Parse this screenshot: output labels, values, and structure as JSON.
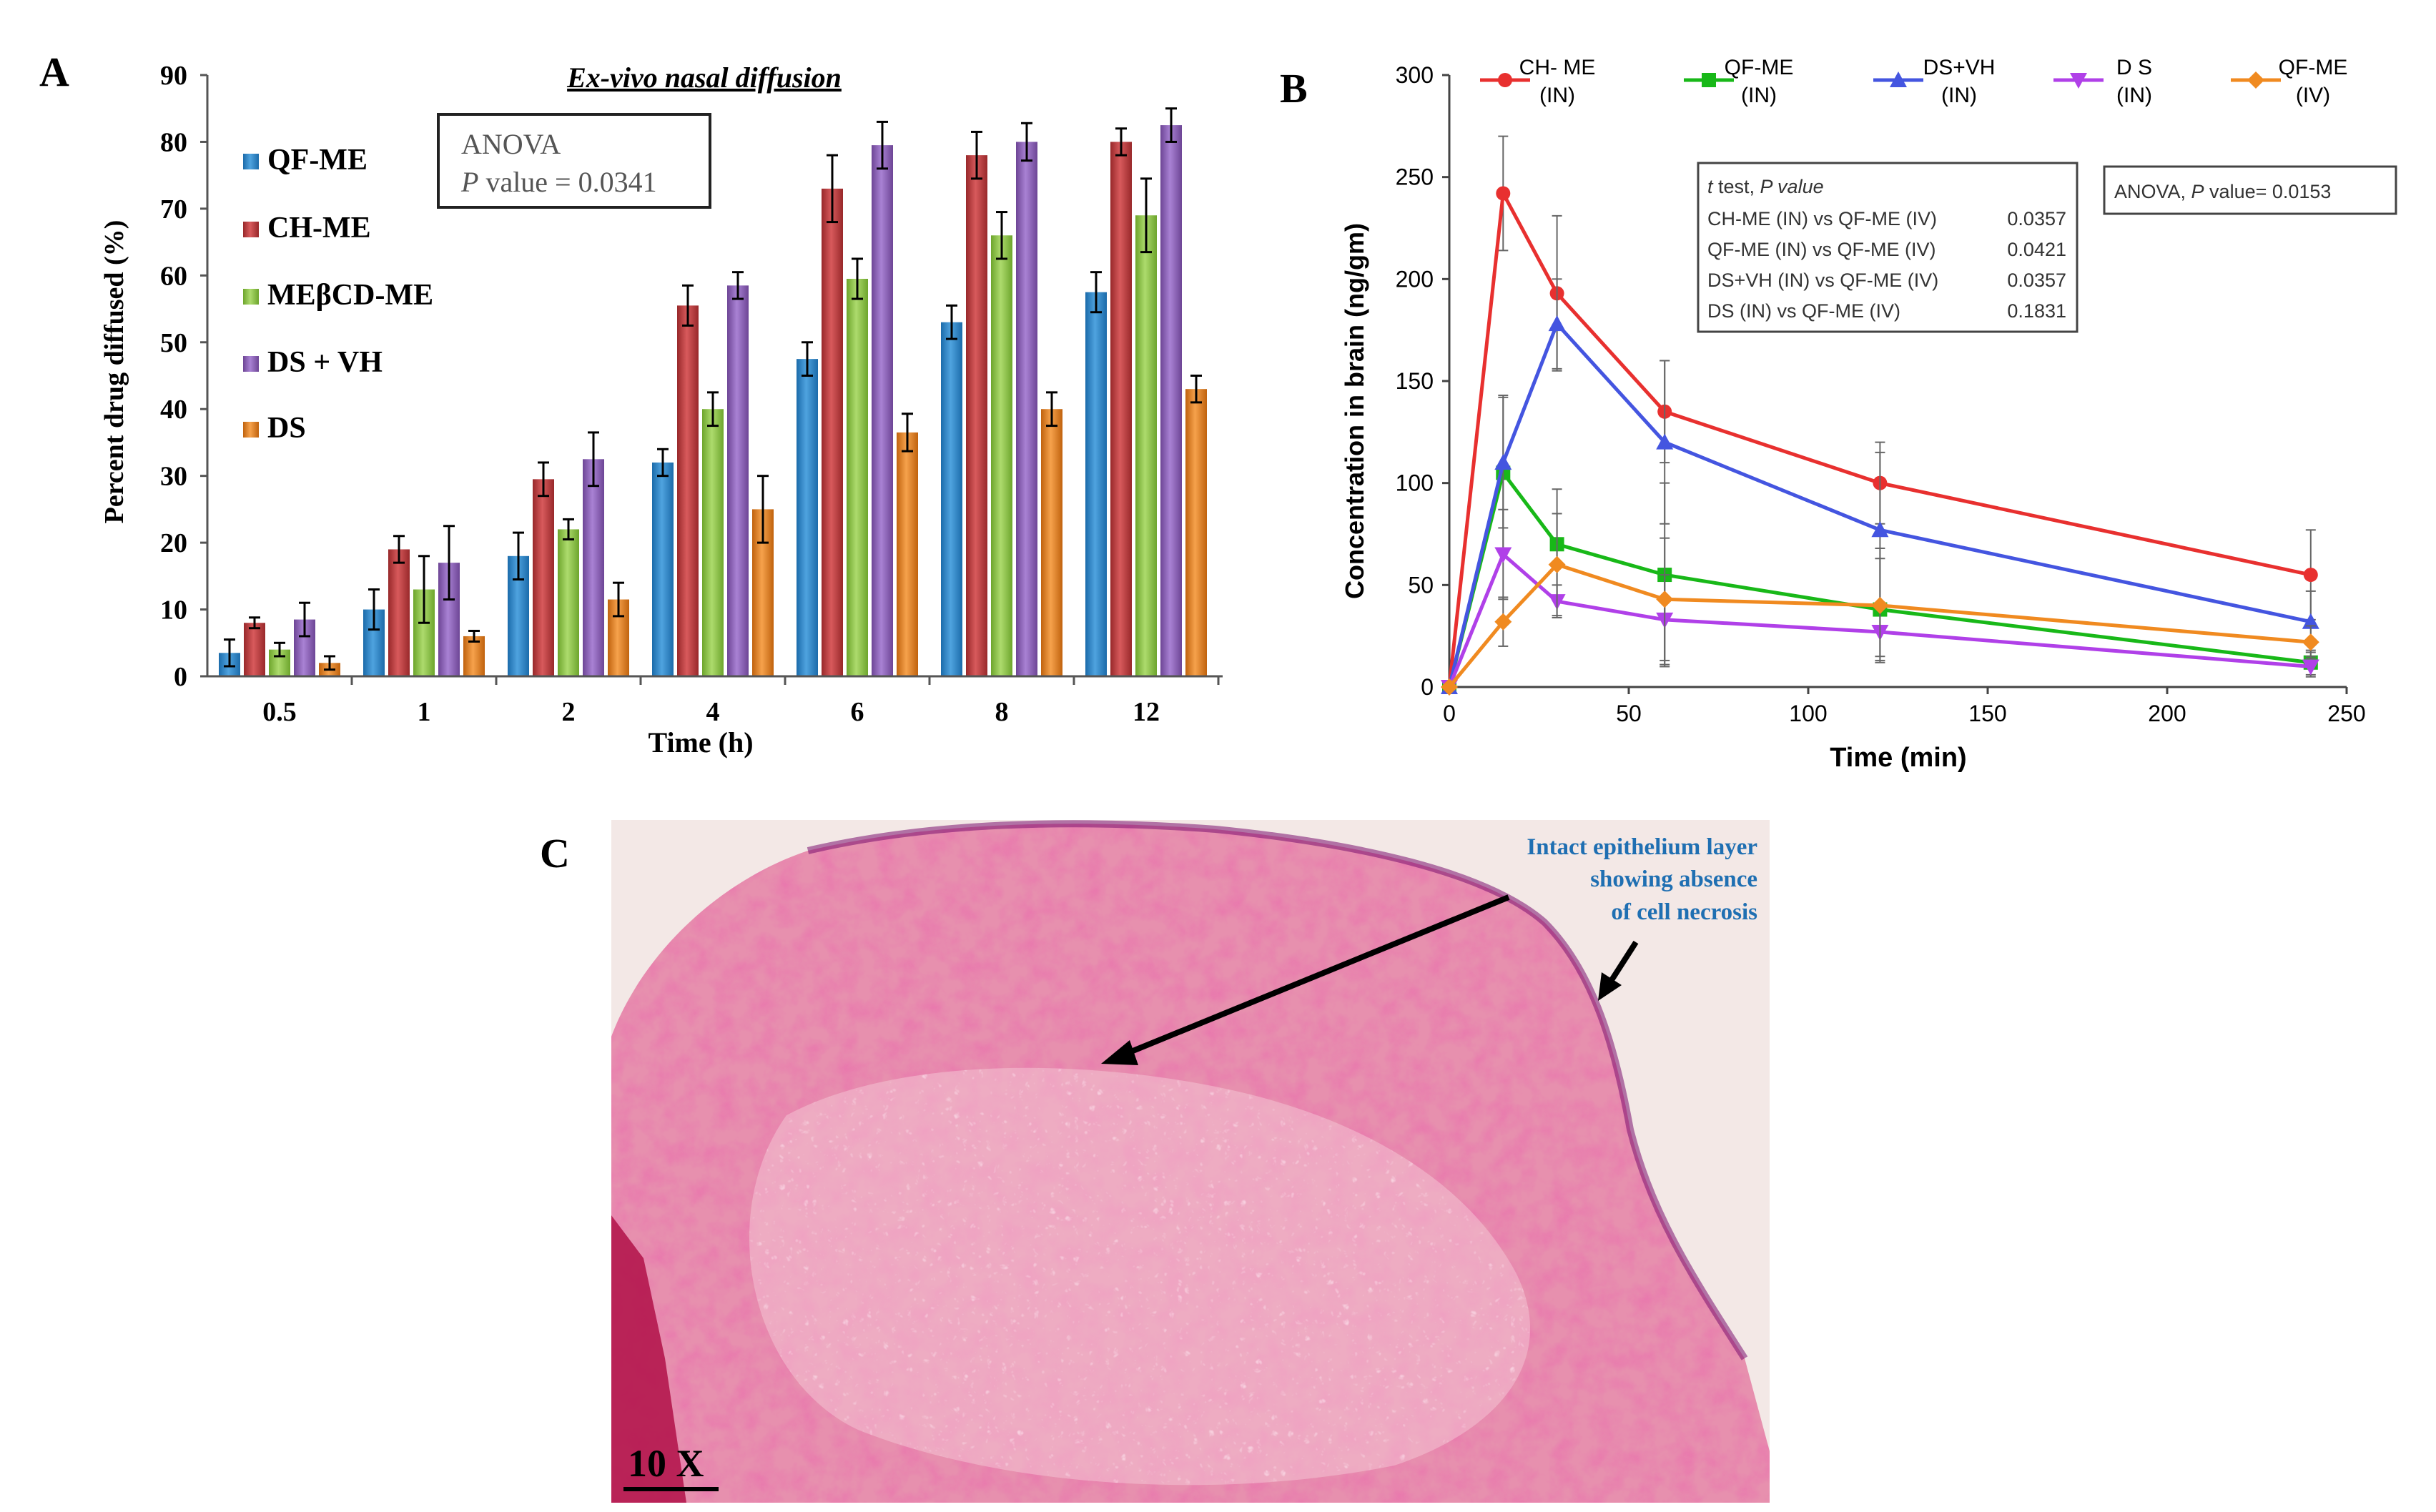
{
  "panels": {
    "a": {
      "label": "A"
    },
    "b": {
      "label": "B"
    },
    "c": {
      "label": "C"
    }
  },
  "colors": {
    "qf_me": "#2E86C8",
    "ch_me": "#C0393B",
    "mebcd_me": "#8CC63F",
    "ds_vh": "#8B5FB8",
    "ds": "#E8801E",
    "line_ch": "#E8302F",
    "line_qf": "#18B818",
    "line_dsvh": "#4455E0",
    "line_ds": "#B040E8",
    "line_qfiv": "#F08A20"
  },
  "chart_data": [
    {
      "type": "bar",
      "title": "Ex-vivo nasal diffusion",
      "xlabel": "Time (h)",
      "ylabel": "Percent drug diffused (%)",
      "ylim": [
        0,
        90
      ],
      "yticks": [
        "0",
        "10",
        "20",
        "30",
        "40",
        "50",
        "60",
        "70",
        "80",
        "90"
      ],
      "categories": [
        "0.5",
        "1",
        "2",
        "4",
        "6",
        "8",
        "12"
      ],
      "annotation": {
        "line1": "ANOVA",
        "p": "P",
        "line2": " value = 0.0341"
      },
      "legend_position": "left",
      "series": [
        {
          "name": "QF-ME",
          "values": [
            3.5,
            10,
            18,
            32,
            47.5,
            53,
            57.5
          ],
          "errors": [
            2,
            3,
            3.5,
            2,
            2.5,
            2.5,
            3
          ]
        },
        {
          "name": "CH-ME",
          "values": [
            8,
            19,
            29.5,
            55.5,
            73,
            78,
            80
          ],
          "errors": [
            0.8,
            2,
            2.5,
            3,
            5,
            3.5,
            2
          ]
        },
        {
          "name": "MEβCD-ME",
          "values": [
            4,
            13,
            22,
            40,
            59.5,
            66,
            69
          ],
          "errors": [
            1,
            5,
            1.5,
            2.5,
            3,
            3.5,
            5.5
          ]
        },
        {
          "name": "DS + VH",
          "values": [
            8.5,
            17,
            32.5,
            58.5,
            79.5,
            80,
            82.5
          ],
          "errors": [
            2.5,
            5.5,
            4,
            2,
            3.5,
            2.8,
            2.5
          ]
        },
        {
          "name": "DS",
          "values": [
            2,
            6,
            11.5,
            25,
            36.5,
            40,
            43
          ],
          "errors": [
            1,
            0.8,
            2.5,
            5,
            2.8,
            2.5,
            2
          ]
        }
      ]
    },
    {
      "type": "line",
      "xlabel": "Time (min)",
      "ylabel": "Concentration in brain (ng/gm)",
      "xlim": [
        0,
        250
      ],
      "ylim": [
        0,
        300
      ],
      "xticks": [
        "0",
        "50",
        "100",
        "150",
        "200",
        "250"
      ],
      "yticks": [
        "0",
        "50",
        "100",
        "150",
        "200",
        "250",
        "300"
      ],
      "x": [
        0,
        15,
        30,
        60,
        120,
        240
      ],
      "series": [
        {
          "name": "CH- ME (IN)",
          "l1": "CH- ME",
          "l2": "(IN)",
          "marker": "circle",
          "values": [
            0,
            242,
            193,
            135,
            100,
            55
          ],
          "errors": [
            0,
            28,
            38,
            25,
            20,
            22
          ]
        },
        {
          "name": "QF-ME (IN)",
          "l1": "QF-ME",
          "l2": "(IN)",
          "marker": "square",
          "values": [
            0,
            105,
            70,
            55,
            38,
            12
          ],
          "errors": [
            0,
            38,
            27,
            45,
            25,
            6
          ]
        },
        {
          "name": "DS+VH (IN)",
          "l1": "DS+VH",
          "l2": "(IN)",
          "marker": "triangle-up",
          "values": [
            0,
            110,
            178,
            120,
            77,
            32
          ],
          "errors": [
            0,
            32,
            22,
            40,
            38,
            15
          ]
        },
        {
          "name": "D S (IN)",
          "l1": "D S",
          "l2": "(IN)",
          "marker": "triangle-down",
          "values": [
            0,
            65,
            42,
            33,
            27,
            10
          ],
          "errors": [
            0,
            22,
            8,
            22,
            12,
            5
          ]
        },
        {
          "name": "QF-ME (IV)",
          "l1": "QF-ME",
          "l2": "(IV)",
          "marker": "diamond",
          "values": [
            0,
            32,
            60,
            43,
            40,
            22
          ],
          "errors": [
            0,
            12,
            25,
            30,
            28,
            8
          ]
        }
      ],
      "ttest": {
        "header_t": "t",
        "header_rest": " test, ",
        "header_p": "P value",
        "rows": [
          {
            "label": "CH-ME (IN) vs QF-ME (IV)",
            "value": "0.0357"
          },
          {
            "label": "QF-ME (IN) vs QF-ME (IV)",
            "value": "0.0421"
          },
          {
            "label": "DS+VH (IN) vs QF-ME (IV)",
            "value": "0.0357"
          },
          {
            "label": "DS (IN) vs QF-ME (IV)",
            "value": "0.1831"
          }
        ]
      },
      "anova": {
        "pre": "ANOVA, ",
        "p": "P",
        "post": " value= 0.0153"
      }
    }
  ],
  "histology": {
    "annotation": [
      "Intact epithelium layer",
      "showing absence",
      "of cell necrosis"
    ],
    "scale_label": "10 X"
  }
}
